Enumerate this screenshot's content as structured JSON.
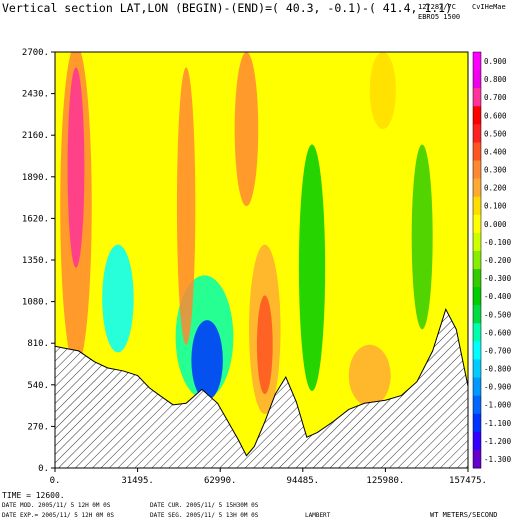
{
  "header": {
    "title": "Vertical section LAT,LON (BEGIN)-(END)=( 40.3, -0.1)-( 41.4, 1.1)",
    "date_code": "12/28//7C",
    "run_label": "EBRO5 1500",
    "corner_mark": "CvIHeMae"
  },
  "footer": {
    "time_line": "TIME = 12600.",
    "date_mod": "DATE MOD. 2005/11/ 5 12H 0M 0S",
    "date_cur": "DATE CUR. 2005/11/ 5 15H30M 0S",
    "date_exp": "DATE EXP.= 2005/11/ 5 12H 0M 0S",
    "date_seg": "DATE SEG. 2005/11/ 5 13H 0M 0S",
    "projection": "LAMBERT",
    "variable": "WT METERS/SECOND"
  },
  "chart_data": {
    "type": "heatmap",
    "title": "Vertical section LAT,LON (BEGIN)-(END)=( 40.3, -0.1)-( 41.4, 1.1)",
    "xlabel": "",
    "ylabel": "",
    "unit": "WT METERS/SECOND",
    "xlim": [
      0,
      157475
    ],
    "ylim": [
      0,
      2700
    ],
    "x_ticks": [
      "0.",
      "31495.",
      "62990.",
      "94485.",
      "125980.",
      "157475."
    ],
    "y_ticks": [
      "0.",
      "270.",
      "540.",
      "810.",
      "1080.",
      "1350.",
      "1620.",
      "1890.",
      "2160.",
      "2430.",
      "2700."
    ],
    "colorbar": {
      "labels": [
        "0.900",
        "0.800",
        "0.700",
        "0.600",
        "0.500",
        "0.400",
        "0.300",
        "0.200",
        "0.100",
        "0.000",
        "-0.100",
        "-0.200",
        "-0.300",
        "-0.400",
        "-0.500",
        "-0.600",
        "-0.700",
        "-0.800",
        "-0.900",
        "-1.000",
        "-1.100",
        "-1.200",
        "-1.300"
      ],
      "colors": [
        "#ff00ff",
        "#ee00ee",
        "#ff3399",
        "#ff0000",
        "#ff2222",
        "#ff5522",
        "#ff8833",
        "#ffaa33",
        "#ffdd00",
        "#ffff00",
        "#ccff00",
        "#88ee00",
        "#33cc00",
        "#00cc00",
        "#00dd44",
        "#00ffaa",
        "#00ffff",
        "#00ccff",
        "#0099ff",
        "#0066ff",
        "#0033ff",
        "#3300ff",
        "#6600cc"
      ]
    },
    "terrain": [
      [
        0,
        790
      ],
      [
        3000,
        780
      ],
      [
        9000,
        760
      ],
      [
        15000,
        690
      ],
      [
        20000,
        650
      ],
      [
        26000,
        630
      ],
      [
        31495,
        600
      ],
      [
        36000,
        520
      ],
      [
        40000,
        470
      ],
      [
        45000,
        410
      ],
      [
        50000,
        420
      ],
      [
        56000,
        510
      ],
      [
        62000,
        420
      ],
      [
        66000,
        300
      ],
      [
        70000,
        180
      ],
      [
        73000,
        80
      ],
      [
        76000,
        140
      ],
      [
        80000,
        300
      ],
      [
        84000,
        480
      ],
      [
        88000,
        590
      ],
      [
        92000,
        430
      ],
      [
        96000,
        200
      ],
      [
        100000,
        230
      ],
      [
        106000,
        300
      ],
      [
        112000,
        380
      ],
      [
        118000,
        420
      ],
      [
        125980,
        440
      ],
      [
        132000,
        470
      ],
      [
        138000,
        560
      ],
      [
        144000,
        760
      ],
      [
        149000,
        1030
      ],
      [
        153000,
        900
      ],
      [
        157475,
        530
      ]
    ],
    "features": [
      {
        "name": "updraft-core-west",
        "x": 8000,
        "y": 1950,
        "rx": 3200,
        "ry": 650,
        "level": 0.7
      },
      {
        "name": "updraft-west-column",
        "x": 8000,
        "y": 1700,
        "rx": 6000,
        "ry": 1050,
        "level": 0.3
      },
      {
        "name": "downdraft-west-low",
        "x": 24000,
        "y": 1100,
        "rx": 6000,
        "ry": 350,
        "level": -0.7
      },
      {
        "name": "downdraft-center-low",
        "x": 58000,
        "y": 700,
        "rx": 6000,
        "ry": 260,
        "level": -1.1
      },
      {
        "name": "downdraft-center-ring",
        "x": 57000,
        "y": 850,
        "rx": 11000,
        "ry": 400,
        "level": -0.6
      },
      {
        "name": "updraft-center-column",
        "x": 50000,
        "y": 1700,
        "rx": 3500,
        "ry": 900,
        "level": 0.3
      },
      {
        "name": "updraft-center-top",
        "x": 73000,
        "y": 2200,
        "rx": 4500,
        "ry": 500,
        "level": 0.3
      },
      {
        "name": "updraft-core-east",
        "x": 80000,
        "y": 800,
        "rx": 3000,
        "ry": 320,
        "level": 0.4
      },
      {
        "name": "updraft-east-column",
        "x": 80000,
        "y": 900,
        "rx": 6000,
        "ry": 550,
        "level": 0.2
      },
      {
        "name": "downdraft-east-mid",
        "x": 98000,
        "y": 1300,
        "rx": 5000,
        "ry": 800,
        "level": -0.4
      },
      {
        "name": "updraft-east-low",
        "x": 120000,
        "y": 600,
        "rx": 8000,
        "ry": 200,
        "level": 0.2
      },
      {
        "name": "downdraft-far-east",
        "x": 140000,
        "y": 1500,
        "rx": 4000,
        "ry": 600,
        "level": -0.3
      },
      {
        "name": "updraft-far-east-top",
        "x": 125000,
        "y": 2450,
        "rx": 5000,
        "ry": 250,
        "level": 0.1
      }
    ]
  }
}
